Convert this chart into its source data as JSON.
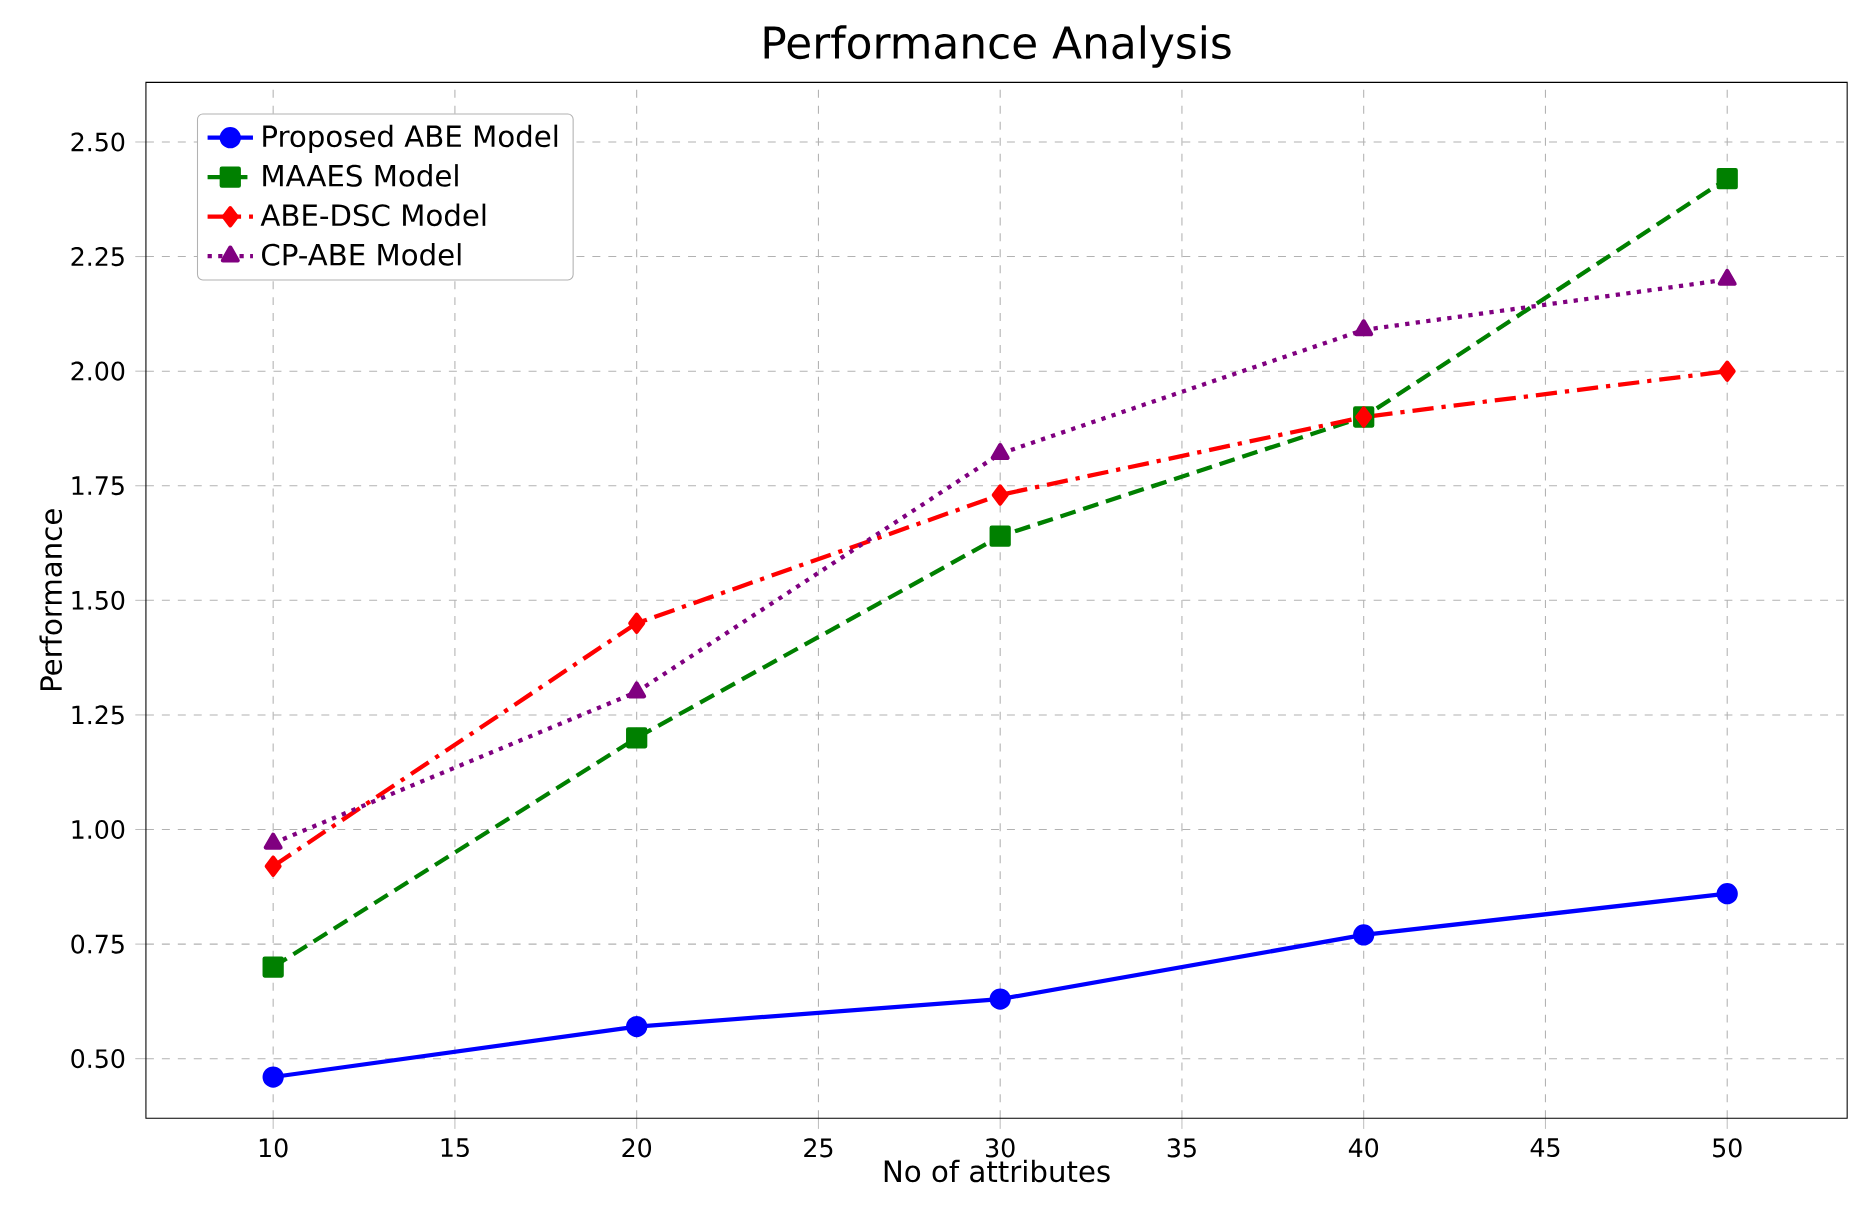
{
  "chart_data": {
    "type": "line",
    "title": "Performance Analysis",
    "xlabel": "No of attributes",
    "ylabel": "Performance",
    "x": [
      10,
      20,
      30,
      40,
      50
    ],
    "series": [
      {
        "name": "Proposed ABE Model",
        "color": "#0000ff",
        "values": [
          0.46,
          0.57,
          0.63,
          0.77,
          0.86
        ],
        "marker": "circle",
        "line_style": "solid"
      },
      {
        "name": "MAAES Model",
        "color": "#008000",
        "values": [
          0.7,
          1.2,
          1.64,
          1.9,
          2.42
        ],
        "marker": "square",
        "line_style": "dashed"
      },
      {
        "name": "ABE-DSC Model",
        "color": "#ff0000",
        "values": [
          0.92,
          1.45,
          1.73,
          1.9,
          2.0
        ],
        "marker": "diamond",
        "line_style": "dashdot"
      },
      {
        "name": "CP-ABE Model",
        "color": "#800080",
        "values": [
          0.97,
          1.3,
          1.82,
          2.09,
          2.2
        ],
        "marker": "triangle",
        "line_style": "dotted"
      }
    ],
    "xlim": [
      6.5,
      53.3
    ],
    "ylim": [
      0.37,
      2.63
    ],
    "xticks": [
      10,
      15,
      20,
      25,
      30,
      35,
      40,
      45,
      50
    ],
    "yticks": [
      {
        "value": 0.5,
        "label": "0.50"
      },
      {
        "value": 0.75,
        "label": "0.75"
      },
      {
        "value": 1.0,
        "label": "1.00"
      },
      {
        "value": 1.25,
        "label": "1.25"
      },
      {
        "value": 1.5,
        "label": "1.50"
      },
      {
        "value": 1.75,
        "label": "1.75"
      },
      {
        "value": 2.0,
        "label": "2.00"
      },
      {
        "value": 2.25,
        "label": "2.25"
      },
      {
        "value": 2.5,
        "label": "2.50"
      }
    ],
    "grid": true,
    "legend": "top left"
  }
}
